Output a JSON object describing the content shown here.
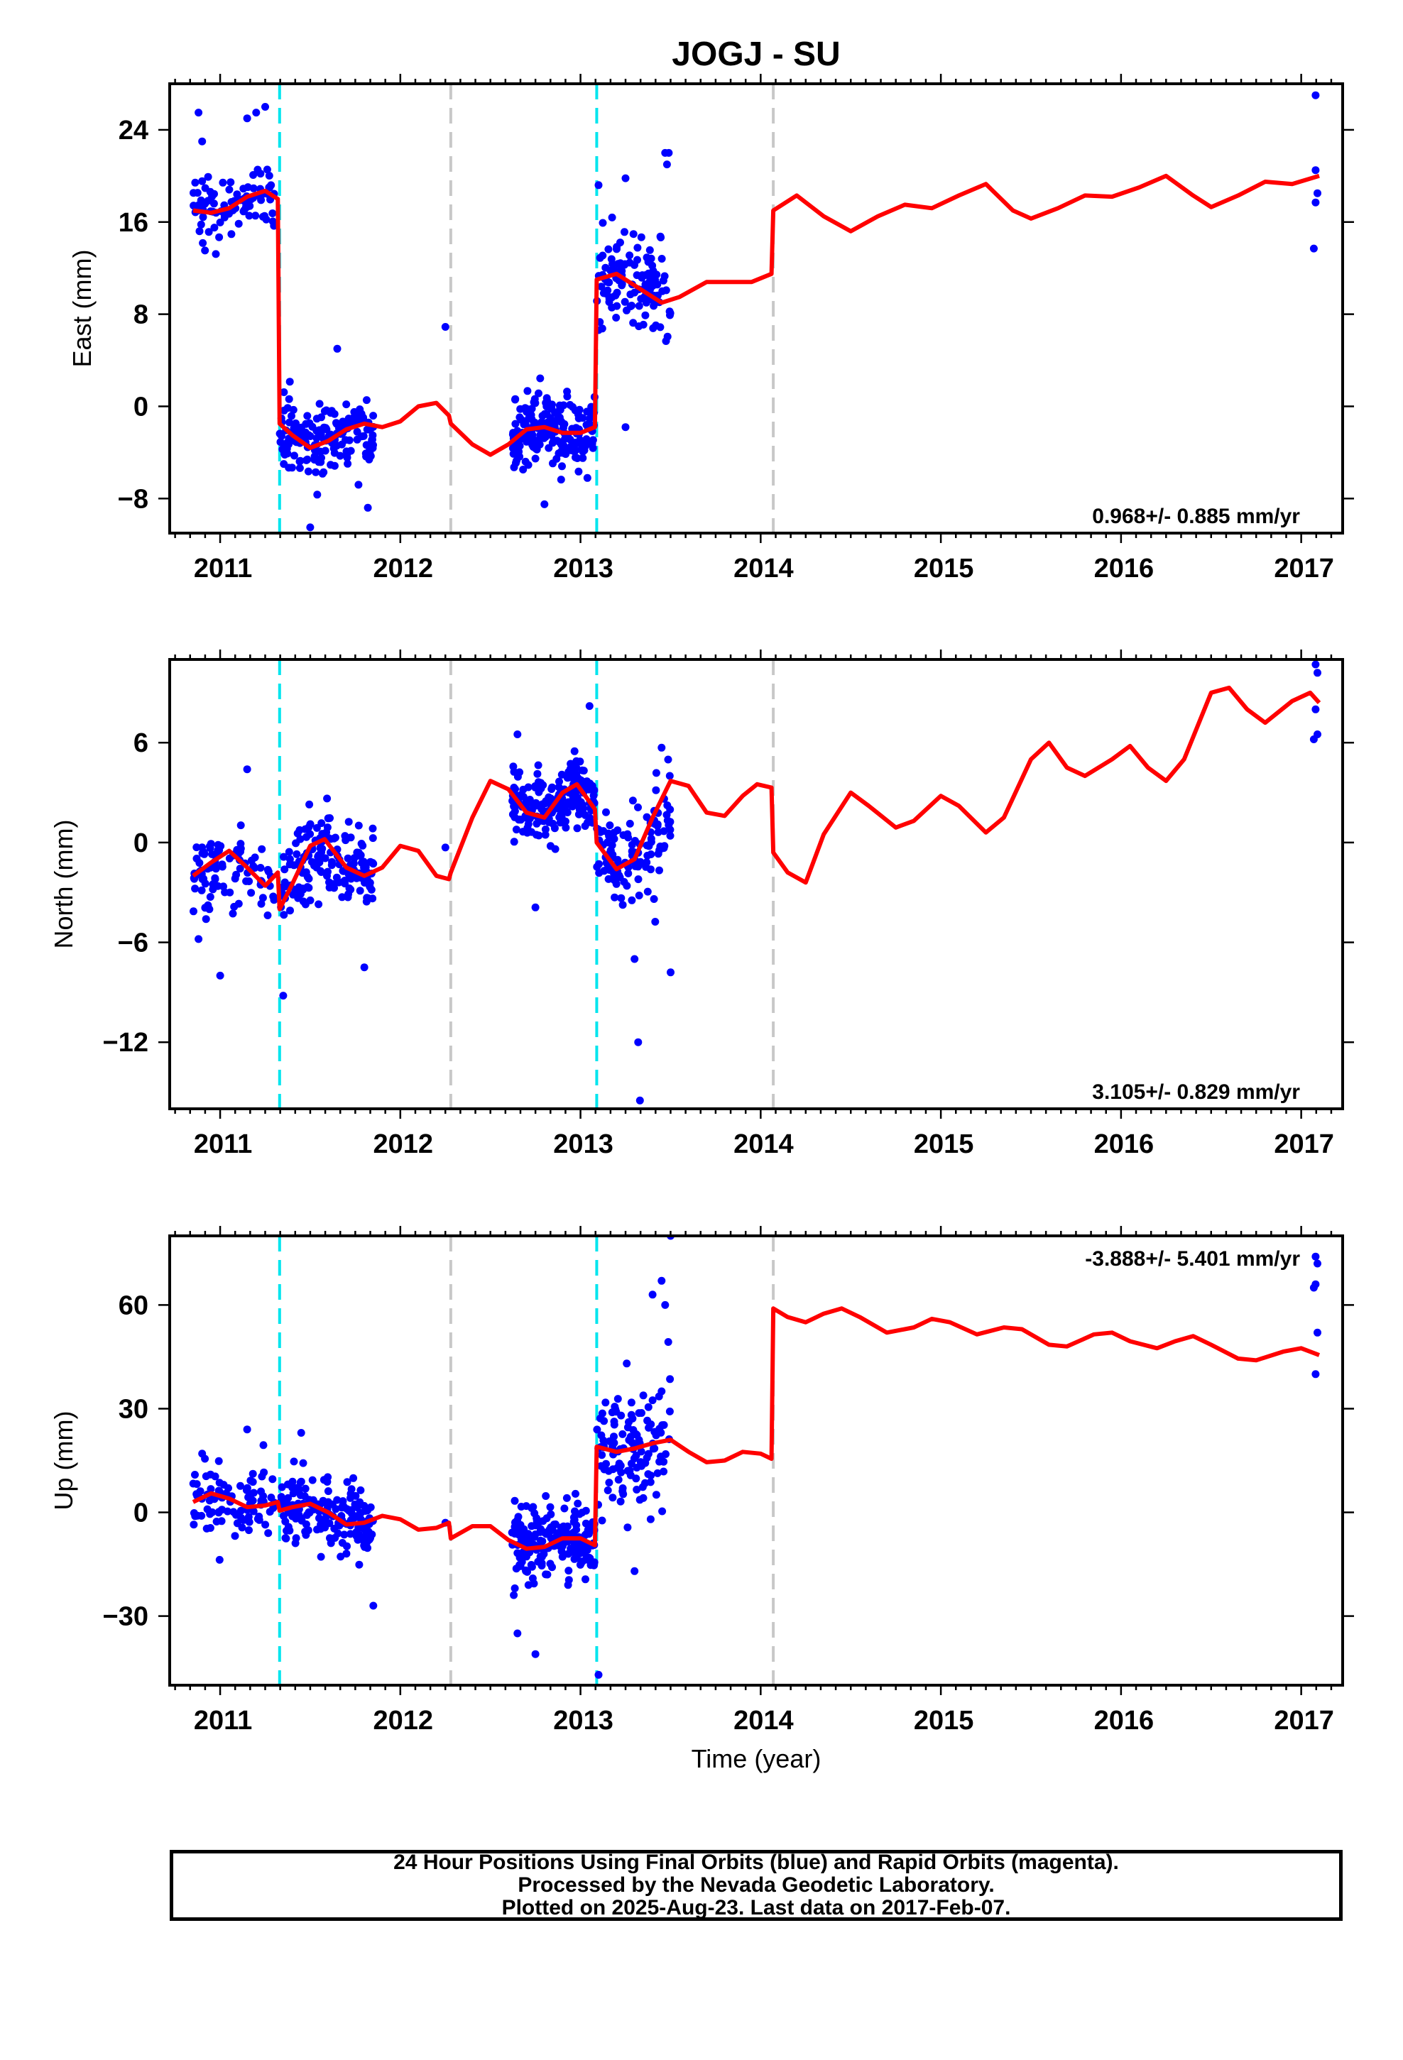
{
  "title": "JOGJ - SU",
  "xlabel": "Time (year)",
  "footer": {
    "line1": "24 Hour Positions Using Final Orbits (blue) and Rapid Orbits (magenta).",
    "line2": "Processed by the Nevada Geodetic Laboratory.",
    "line3": "Plotted on 2025-Aug-23. Last data on 2017-Feb-07."
  },
  "colors": {
    "points": "#0000ff",
    "model": "#ff0000",
    "equipment_change": "#00e5ee",
    "earthquake": "#c8c8c8"
  },
  "chart_data": [
    {
      "type": "scatter",
      "component": "East",
      "ylabel": "East (mm)",
      "rate_text": "0.968+/- 0.885 mm/yr",
      "xlim": [
        2010.72,
        2017.23
      ],
      "ylim": [
        -11,
        28
      ],
      "yticks": [
        -8,
        0,
        8,
        16,
        24
      ],
      "xticks": [
        2011,
        2012,
        2013,
        2014,
        2015,
        2016,
        2017
      ],
      "vlines_cyan": [
        2011.33,
        2013.09
      ],
      "vlines_gray": [
        2012.28,
        2014.07
      ],
      "model": [
        [
          2010.85,
          17.0
        ],
        [
          2010.95,
          16.8
        ],
        [
          2011.05,
          17.2
        ],
        [
          2011.15,
          18.2
        ],
        [
          2011.25,
          18.7
        ],
        [
          2011.32,
          18.0
        ],
        [
          2011.33,
          -1.5
        ],
        [
          2011.4,
          -2.5
        ],
        [
          2011.5,
          -3.6
        ],
        [
          2011.6,
          -3.0
        ],
        [
          2011.7,
          -2.0
        ],
        [
          2011.8,
          -1.5
        ],
        [
          2011.9,
          -1.8
        ],
        [
          2012.0,
          -1.3
        ],
        [
          2012.1,
          0.0
        ],
        [
          2012.2,
          0.3
        ],
        [
          2012.27,
          -0.8
        ],
        [
          2012.28,
          -1.5
        ],
        [
          2012.4,
          -3.3
        ],
        [
          2012.5,
          -4.2
        ],
        [
          2012.6,
          -3.3
        ],
        [
          2012.7,
          -2.0
        ],
        [
          2012.8,
          -1.8
        ],
        [
          2012.9,
          -2.3
        ],
        [
          2013.0,
          -2.3
        ],
        [
          2013.08,
          -1.8
        ],
        [
          2013.09,
          11.0
        ],
        [
          2013.2,
          11.5
        ],
        [
          2013.35,
          10.0
        ],
        [
          2013.45,
          9.0
        ],
        [
          2013.55,
          9.5
        ],
        [
          2013.7,
          10.8
        ],
        [
          2013.85,
          10.8
        ],
        [
          2013.95,
          10.8
        ],
        [
          2014.06,
          11.5
        ],
        [
          2014.07,
          17.0
        ],
        [
          2014.2,
          18.3
        ],
        [
          2014.35,
          16.5
        ],
        [
          2014.5,
          15.2
        ],
        [
          2014.65,
          16.5
        ],
        [
          2014.8,
          17.5
        ],
        [
          2014.95,
          17.2
        ],
        [
          2015.1,
          18.3
        ],
        [
          2015.25,
          19.3
        ],
        [
          2015.4,
          17.0
        ],
        [
          2015.5,
          16.3
        ],
        [
          2015.65,
          17.2
        ],
        [
          2015.8,
          18.3
        ],
        [
          2015.95,
          18.2
        ],
        [
          2016.1,
          19.0
        ],
        [
          2016.25,
          20.0
        ],
        [
          2016.4,
          18.3
        ],
        [
          2016.5,
          17.3
        ],
        [
          2016.65,
          18.3
        ],
        [
          2016.8,
          19.5
        ],
        [
          2016.95,
          19.3
        ],
        [
          2017.1,
          20.0
        ]
      ],
      "clusters": [
        {
          "x0": 2010.85,
          "x1": 2011.3,
          "center": 17.5,
          "spread": 2.6,
          "n": 90
        },
        {
          "x0": 2011.33,
          "x1": 2011.85,
          "center": -2.5,
          "spread": 2.5,
          "n": 170
        },
        {
          "x0": 2012.62,
          "x1": 2013.08,
          "center": -2.2,
          "spread": 2.7,
          "n": 200
        },
        {
          "x0": 2013.09,
          "x1": 2013.5,
          "center": 10.5,
          "spread": 3.8,
          "n": 120
        }
      ],
      "extra_points": [
        [
          2010.88,
          25.5
        ],
        [
          2010.9,
          23.0
        ],
        [
          2011.15,
          25.0
        ],
        [
          2011.2,
          25.5
        ],
        [
          2011.25,
          26.0
        ],
        [
          2011.5,
          -10.5
        ],
        [
          2011.82,
          -8.8
        ],
        [
          2011.65,
          5.0
        ],
        [
          2012.25,
          6.9
        ],
        [
          2013.1,
          19.2
        ],
        [
          2013.25,
          19.8
        ],
        [
          2013.47,
          22.0
        ],
        [
          2013.49,
          22.0
        ],
        [
          2013.48,
          21.0
        ],
        [
          2013.25,
          -1.8
        ],
        [
          2012.8,
          -8.5
        ],
        [
          2017.08,
          27.0
        ],
        [
          2017.08,
          20.5
        ],
        [
          2017.09,
          18.5
        ],
        [
          2017.08,
          17.7
        ],
        [
          2017.07,
          13.7
        ]
      ]
    },
    {
      "type": "scatter",
      "component": "North",
      "ylabel": "North (mm)",
      "rate_text": "3.105+/- 0.829 mm/yr",
      "xlim": [
        2010.72,
        2017.23
      ],
      "ylim": [
        -16,
        11
      ],
      "yticks": [
        -12,
        -6,
        0,
        6
      ],
      "xticks": [
        2011,
        2012,
        2013,
        2014,
        2015,
        2016,
        2017
      ],
      "vlines_cyan": [
        2011.33,
        2013.09
      ],
      "vlines_gray": [
        2012.28,
        2014.07
      ],
      "model": [
        [
          2010.85,
          -2.0
        ],
        [
          2010.95,
          -1.2
        ],
        [
          2011.05,
          -0.5
        ],
        [
          2011.15,
          -1.5
        ],
        [
          2011.25,
          -2.6
        ],
        [
          2011.32,
          -1.8
        ],
        [
          2011.33,
          -4.0
        ],
        [
          2011.4,
          -2.5
        ],
        [
          2011.5,
          -0.2
        ],
        [
          2011.58,
          0.2
        ],
        [
          2011.7,
          -1.5
        ],
        [
          2011.8,
          -2.0
        ],
        [
          2011.9,
          -1.5
        ],
        [
          2012.0,
          -0.2
        ],
        [
          2012.1,
          -0.5
        ],
        [
          2012.2,
          -2.0
        ],
        [
          2012.27,
          -2.2
        ],
        [
          2012.28,
          -1.8
        ],
        [
          2012.4,
          1.5
        ],
        [
          2012.5,
          3.7
        ],
        [
          2012.6,
          3.2
        ],
        [
          2012.7,
          1.8
        ],
        [
          2012.8,
          1.5
        ],
        [
          2012.9,
          3.0
        ],
        [
          2012.98,
          3.5
        ],
        [
          2013.08,
          2.0
        ],
        [
          2013.09,
          0.0
        ],
        [
          2013.2,
          -1.6
        ],
        [
          2013.3,
          -1.0
        ],
        [
          2013.4,
          1.5
        ],
        [
          2013.5,
          3.7
        ],
        [
          2013.6,
          3.4
        ],
        [
          2013.7,
          1.8
        ],
        [
          2013.8,
          1.6
        ],
        [
          2013.9,
          2.8
        ],
        [
          2013.98,
          3.5
        ],
        [
          2014.06,
          3.3
        ],
        [
          2014.07,
          -0.6
        ],
        [
          2014.15,
          -1.8
        ],
        [
          2014.25,
          -2.4
        ],
        [
          2014.35,
          0.5
        ],
        [
          2014.5,
          3.0
        ],
        [
          2014.6,
          2.2
        ],
        [
          2014.75,
          0.9
        ],
        [
          2014.85,
          1.3
        ],
        [
          2015.0,
          2.8
        ],
        [
          2015.1,
          2.2
        ],
        [
          2015.25,
          0.6
        ],
        [
          2015.35,
          1.5
        ],
        [
          2015.5,
          5.0
        ],
        [
          2015.6,
          6.0
        ],
        [
          2015.7,
          4.5
        ],
        [
          2015.8,
          4.0
        ],
        [
          2015.95,
          5.0
        ],
        [
          2016.05,
          5.8
        ],
        [
          2016.15,
          4.5
        ],
        [
          2016.25,
          3.7
        ],
        [
          2016.35,
          5.0
        ],
        [
          2016.5,
          9.0
        ],
        [
          2016.6,
          9.3
        ],
        [
          2016.7,
          8.0
        ],
        [
          2016.8,
          7.2
        ],
        [
          2016.95,
          8.5
        ],
        [
          2017.05,
          9.0
        ],
        [
          2017.1,
          8.4
        ]
      ],
      "clusters": [
        {
          "x0": 2010.85,
          "x1": 2011.3,
          "center": -2.0,
          "spread": 2.0,
          "n": 90
        },
        {
          "x0": 2011.33,
          "x1": 2011.85,
          "center": -1.0,
          "spread": 2.3,
          "n": 170
        },
        {
          "x0": 2012.62,
          "x1": 2013.08,
          "center": 2.5,
          "spread": 1.8,
          "n": 200
        },
        {
          "x0": 2013.09,
          "x1": 2013.5,
          "center": -1.0,
          "spread": 2.5,
          "n": 120
        }
      ],
      "extra_points": [
        [
          2010.88,
          -5.8
        ],
        [
          2011.0,
          -8.0
        ],
        [
          2011.15,
          4.4
        ],
        [
          2011.35,
          -9.2
        ],
        [
          2011.8,
          -7.5
        ],
        [
          2012.25,
          -0.3
        ],
        [
          2012.65,
          6.5
        ],
        [
          2012.75,
          -3.9
        ],
        [
          2013.05,
          8.2
        ],
        [
          2013.3,
          -7.0
        ],
        [
          2013.32,
          -12.0
        ],
        [
          2013.33,
          -15.5
        ],
        [
          2013.5,
          -7.8
        ],
        [
          2013.45,
          5.7
        ],
        [
          2017.08,
          10.7
        ],
        [
          2017.09,
          10.2
        ],
        [
          2017.08,
          8.0
        ],
        [
          2017.09,
          6.5
        ],
        [
          2017.07,
          6.2
        ]
      ]
    },
    {
      "type": "scatter",
      "component": "Up",
      "ylabel": "Up (mm)",
      "rate_text": "-3.888+/- 5.401 mm/yr",
      "xlim": [
        2010.72,
        2017.23
      ],
      "ylim": [
        -50,
        80
      ],
      "yticks": [
        -30,
        0,
        30,
        60
      ],
      "xticks": [
        2011,
        2012,
        2013,
        2014,
        2015,
        2016,
        2017
      ],
      "vlines_cyan": [
        2011.33,
        2013.09
      ],
      "vlines_gray": [
        2012.28,
        2014.07
      ],
      "model": [
        [
          2010.85,
          3.0
        ],
        [
          2010.95,
          5.5
        ],
        [
          2011.05,
          4.0
        ],
        [
          2011.15,
          1.5
        ],
        [
          2011.25,
          2.0
        ],
        [
          2011.32,
          3.0
        ],
        [
          2011.33,
          0.5
        ],
        [
          2011.4,
          1.5
        ],
        [
          2011.5,
          2.5
        ],
        [
          2011.6,
          0.0
        ],
        [
          2011.7,
          -3.5
        ],
        [
          2011.8,
          -3.0
        ],
        [
          2011.9,
          -1.0
        ],
        [
          2012.0,
          -2.0
        ],
        [
          2012.1,
          -5.0
        ],
        [
          2012.2,
          -4.5
        ],
        [
          2012.27,
          -3.0
        ],
        [
          2012.28,
          -7.5
        ],
        [
          2012.4,
          -4.0
        ],
        [
          2012.5,
          -4.0
        ],
        [
          2012.6,
          -8.0
        ],
        [
          2012.7,
          -10.5
        ],
        [
          2012.8,
          -10.0
        ],
        [
          2012.9,
          -7.5
        ],
        [
          2013.0,
          -7.5
        ],
        [
          2013.08,
          -9.5
        ],
        [
          2013.09,
          19.0
        ],
        [
          2013.2,
          17.5
        ],
        [
          2013.3,
          18.5
        ],
        [
          2013.4,
          20.0
        ],
        [
          2013.5,
          21.0
        ],
        [
          2013.6,
          17.5
        ],
        [
          2013.7,
          14.5
        ],
        [
          2013.8,
          15.0
        ],
        [
          2013.9,
          17.5
        ],
        [
          2014.0,
          17.0
        ],
        [
          2014.06,
          15.5
        ],
        [
          2014.07,
          59.0
        ],
        [
          2014.15,
          56.5
        ],
        [
          2014.25,
          55.0
        ],
        [
          2014.35,
          57.5
        ],
        [
          2014.45,
          59.0
        ],
        [
          2014.55,
          56.5
        ],
        [
          2014.7,
          52.0
        ],
        [
          2014.85,
          53.5
        ],
        [
          2014.95,
          56.0
        ],
        [
          2015.05,
          55.0
        ],
        [
          2015.2,
          51.5
        ],
        [
          2015.35,
          53.5
        ],
        [
          2015.45,
          53.0
        ],
        [
          2015.6,
          48.5
        ],
        [
          2015.7,
          48.0
        ],
        [
          2015.85,
          51.5
        ],
        [
          2015.95,
          52.0
        ],
        [
          2016.05,
          49.5
        ],
        [
          2016.2,
          47.5
        ],
        [
          2016.3,
          49.5
        ],
        [
          2016.4,
          51.0
        ],
        [
          2016.5,
          48.5
        ],
        [
          2016.65,
          44.5
        ],
        [
          2016.75,
          44.0
        ],
        [
          2016.9,
          46.5
        ],
        [
          2017.0,
          47.5
        ],
        [
          2017.1,
          45.5
        ]
      ],
      "clusters": [
        {
          "x0": 2010.85,
          "x1": 2011.3,
          "center": 3.0,
          "spread": 9.0,
          "n": 90
        },
        {
          "x0": 2011.33,
          "x1": 2011.85,
          "center": -1.5,
          "spread": 8.5,
          "n": 170
        },
        {
          "x0": 2012.62,
          "x1": 2013.08,
          "center": -8.5,
          "spread": 11.0,
          "n": 200
        },
        {
          "x0": 2013.09,
          "x1": 2013.5,
          "center": 22.0,
          "spread": 16.0,
          "n": 120
        }
      ],
      "extra_points": [
        [
          2010.9,
          17.0
        ],
        [
          2011.15,
          24.0
        ],
        [
          2011.45,
          23.0
        ],
        [
          2011.85,
          -27.0
        ],
        [
          2012.25,
          -3.0
        ],
        [
          2012.75,
          -41.0
        ],
        [
          2012.65,
          -35.0
        ],
        [
          2013.1,
          -47.0
        ],
        [
          2013.5,
          80.0
        ],
        [
          2013.45,
          67.0
        ],
        [
          2013.4,
          63.0
        ],
        [
          2013.47,
          60.0
        ],
        [
          2013.3,
          -17.0
        ],
        [
          2017.08,
          74.0
        ],
        [
          2017.09,
          72.0
        ],
        [
          2017.08,
          66.0
        ],
        [
          2017.07,
          65.0
        ],
        [
          2017.09,
          52.0
        ],
        [
          2017.08,
          40.0
        ]
      ]
    }
  ]
}
